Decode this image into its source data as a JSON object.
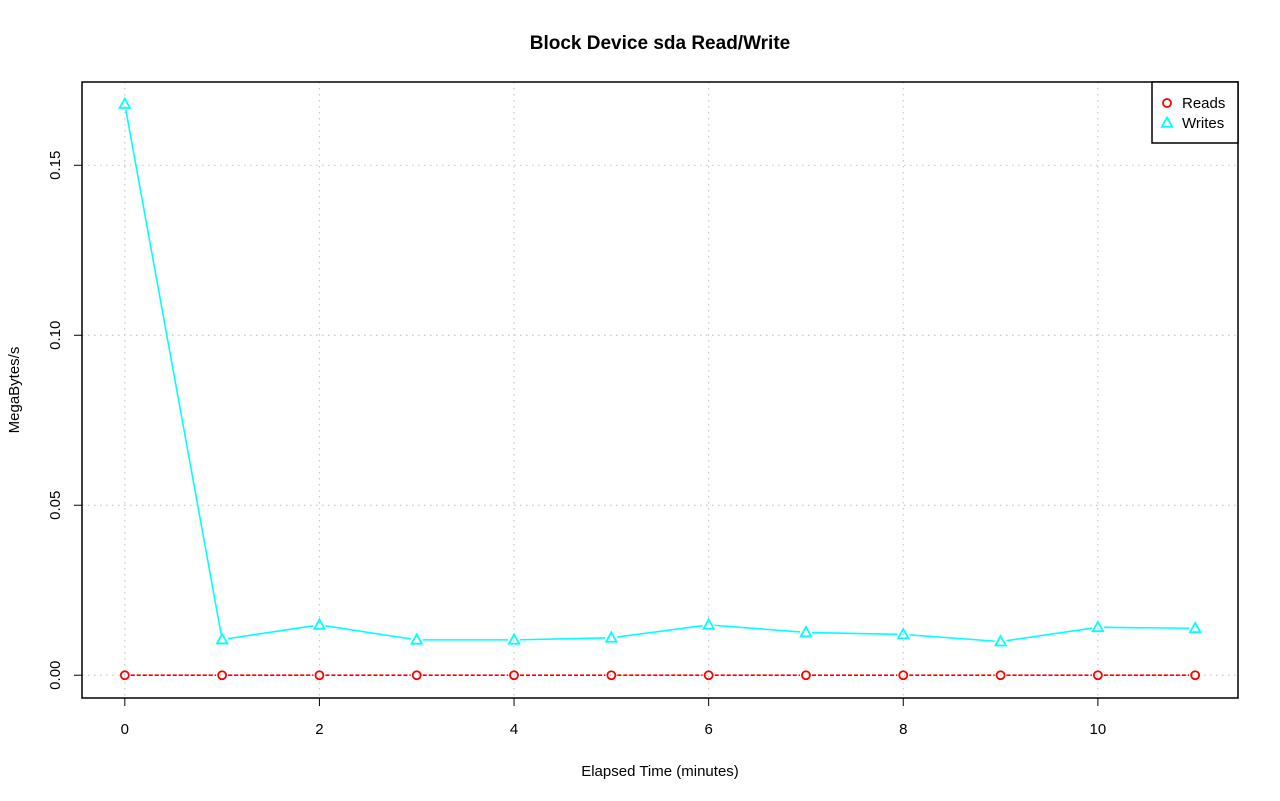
{
  "chart_data": {
    "type": "line",
    "title": "Block Device sda Read/Write",
    "xlabel": "Elapsed Time (minutes)",
    "ylabel": "MegaBytes/s",
    "x": [
      0,
      1,
      2,
      3,
      4,
      5,
      6,
      7,
      8,
      9,
      10,
      11
    ],
    "xlim": [
      -0.44,
      11.44
    ],
    "ylim": [
      -0.0067,
      0.1745
    ],
    "x_ticks": [
      0,
      2,
      4,
      6,
      8,
      10
    ],
    "x_tick_labels": [
      "0",
      "2",
      "4",
      "6",
      "8",
      "10"
    ],
    "y_ticks": [
      0.0,
      0.05,
      0.1,
      0.15
    ],
    "y_tick_labels": [
      "0.00",
      "0.05",
      "0.10",
      "0.15"
    ],
    "grid": true,
    "legend_position": "top-right",
    "series": [
      {
        "name": "Reads",
        "color": "#ff0000",
        "marker": "circle",
        "line_style": "dashed",
        "values": [
          0,
          0,
          0,
          0,
          0,
          0,
          0,
          0,
          0,
          0,
          0,
          0
        ]
      },
      {
        "name": "Writes",
        "color": "#00ffff",
        "marker": "triangle",
        "line_style": "solid",
        "values": [
          0.168,
          0.0105,
          0.0148,
          0.0104,
          0.0104,
          0.011,
          0.0148,
          0.0126,
          0.012,
          0.0099,
          0.0141,
          0.0138
        ]
      }
    ]
  }
}
